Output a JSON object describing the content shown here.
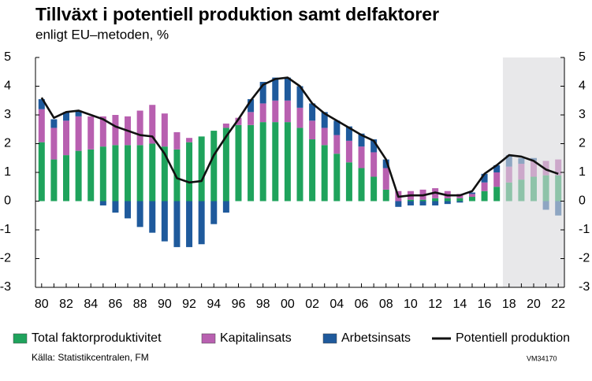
{
  "chart_data": {
    "type": "bar",
    "title": "Tillväxt i potentiell produktion samt delfaktorer",
    "subtitle": "enligt EU–metoden, %",
    "source": "Källa: Statistikcentralen, FM",
    "code": "VM34170",
    "stacked": true,
    "shade_from_category": "18",
    "categories": [
      "80",
      null,
      "82",
      null,
      "84",
      null,
      "86",
      null,
      "88",
      null,
      "90",
      null,
      "92",
      null,
      "94",
      null,
      "96",
      null,
      "98",
      null,
      "00",
      null,
      "02",
      null,
      "04",
      null,
      "06",
      null,
      "08",
      null,
      "10",
      null,
      "12",
      null,
      "14",
      null,
      "16",
      null,
      "18",
      null,
      "20",
      null,
      "22"
    ],
    "series": [
      {
        "name": "Total faktorproduktivitet",
        "type": "bar",
        "color": "#1fa35c",
        "values": [
          2.05,
          1.45,
          1.6,
          1.75,
          1.8,
          1.9,
          1.95,
          1.95,
          1.95,
          2.0,
          1.9,
          1.8,
          2.05,
          2.25,
          2.45,
          2.55,
          2.65,
          2.65,
          2.75,
          2.75,
          2.75,
          2.55,
          2.15,
          1.95,
          1.65,
          1.35,
          1.15,
          0.85,
          0.4,
          0.0,
          0.05,
          0.05,
          0.1,
          0.1,
          0.1,
          0.15,
          0.35,
          0.5,
          0.65,
          0.75,
          0.85,
          0.9,
          0.9
        ]
      },
      {
        "name": "Kapitalinsats",
        "type": "bar",
        "color": "#b860b0",
        "values": [
          1.15,
          1.1,
          1.2,
          1.2,
          1.15,
          1.05,
          1.05,
          1.0,
          1.2,
          1.35,
          1.15,
          0.6,
          0.15,
          0.0,
          0.0,
          0.15,
          0.25,
          0.45,
          0.65,
          0.75,
          0.75,
          0.7,
          0.65,
          0.6,
          0.65,
          0.75,
          0.75,
          0.85,
          0.75,
          0.35,
          0.3,
          0.35,
          0.35,
          0.25,
          0.15,
          0.1,
          0.3,
          0.5,
          0.55,
          0.55,
          0.55,
          0.5,
          0.55
        ]
      },
      {
        "name": "Arbetsinsats",
        "type": "bar",
        "color": "#1f5a9c",
        "values": [
          0.35,
          0.3,
          0.3,
          0.2,
          0.0,
          -0.15,
          -0.4,
          -0.6,
          -0.9,
          -1.1,
          -1.4,
          -1.6,
          -1.6,
          -1.5,
          -0.8,
          -0.4,
          0.0,
          0.45,
          0.75,
          0.8,
          0.8,
          0.75,
          0.6,
          0.55,
          0.5,
          0.5,
          0.45,
          0.45,
          0.3,
          -0.2,
          -0.15,
          -0.15,
          -0.15,
          -0.1,
          -0.05,
          0.05,
          0.3,
          0.25,
          0.4,
          0.2,
          0.1,
          -0.3,
          -0.5
        ]
      },
      {
        "name": "Potentiell produktion",
        "type": "line",
        "color": "#111111",
        "values": [
          3.6,
          2.9,
          3.1,
          3.15,
          3.0,
          2.85,
          2.6,
          2.45,
          2.3,
          2.25,
          1.65,
          0.8,
          0.65,
          0.7,
          1.6,
          2.25,
          2.85,
          3.5,
          4.05,
          4.25,
          4.3,
          4.0,
          3.4,
          3.05,
          2.8,
          2.55,
          2.3,
          2.1,
          1.45,
          0.15,
          0.2,
          0.2,
          0.3,
          0.2,
          0.2,
          0.35,
          0.95,
          1.25,
          1.6,
          1.55,
          1.4,
          1.1,
          0.95
        ]
      }
    ],
    "ylim": [
      -3,
      5
    ],
    "yticks": [
      -3,
      -2,
      -1,
      0,
      1,
      2,
      3,
      4,
      5
    ]
  }
}
